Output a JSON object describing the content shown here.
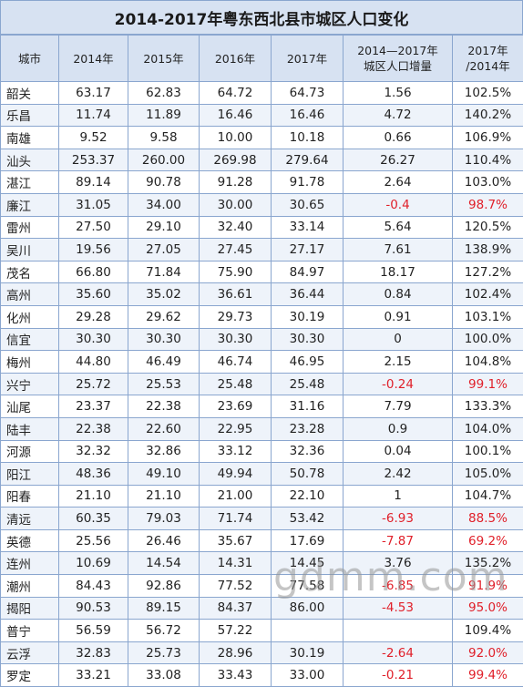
{
  "title": "2014-2017年粤东西北县市城区人口变化",
  "headers": [
    "城市",
    "2014年",
    "2015年",
    "2016年",
    "2017年",
    "2014—2017年\n城区人口增量",
    "2017年\n/2014年"
  ],
  "rows": [
    [
      "韶关",
      "63.17",
      "62.83",
      "64.72",
      "64.73",
      "1.56",
      "102.5%"
    ],
    [
      "乐昌",
      "11.74",
      "11.89",
      "16.46",
      "16.46",
      "4.72",
      "140.2%"
    ],
    [
      "南雄",
      "9.52",
      "9.58",
      "10.00",
      "10.18",
      "0.66",
      "106.9%"
    ],
    [
      "汕头",
      "253.37",
      "260.00",
      "269.98",
      "279.64",
      "26.27",
      "110.4%"
    ],
    [
      "湛江",
      "89.14",
      "90.78",
      "91.28",
      "91.78",
      "2.64",
      "103.0%"
    ],
    [
      "廉江",
      "31.05",
      "34.00",
      "30.00",
      "30.65",
      "-0.4",
      "98.7%"
    ],
    [
      "雷州",
      "27.50",
      "29.10",
      "32.40",
      "33.14",
      "5.64",
      "120.5%"
    ],
    [
      "吴川",
      "19.56",
      "27.05",
      "27.45",
      "27.17",
      "7.61",
      "138.9%"
    ],
    [
      "茂名",
      "66.80",
      "71.84",
      "75.90",
      "84.97",
      "18.17",
      "127.2%"
    ],
    [
      "高州",
      "35.60",
      "35.02",
      "36.61",
      "36.44",
      "0.84",
      "102.4%"
    ],
    [
      "化州",
      "29.28",
      "29.62",
      "29.73",
      "30.19",
      "0.91",
      "103.1%"
    ],
    [
      "信宜",
      "30.30",
      "30.30",
      "30.30",
      "30.30",
      "0",
      "100.0%"
    ],
    [
      "梅州",
      "44.80",
      "46.49",
      "46.74",
      "46.95",
      "2.15",
      "104.8%"
    ],
    [
      "兴宁",
      "25.72",
      "25.53",
      "25.48",
      "25.48",
      "-0.24",
      "99.1%"
    ],
    [
      "汕尾",
      "23.37",
      "22.38",
      "23.69",
      "31.16",
      "7.79",
      "133.3%"
    ],
    [
      "陆丰",
      "22.38",
      "22.60",
      "22.95",
      "23.28",
      "0.9",
      "104.0%"
    ],
    [
      "河源",
      "32.32",
      "32.86",
      "33.12",
      "32.36",
      "0.04",
      "100.1%"
    ],
    [
      "阳江",
      "48.36",
      "49.10",
      "49.94",
      "50.78",
      "2.42",
      "105.0%"
    ],
    [
      "阳春",
      "21.10",
      "21.10",
      "21.00",
      "22.10",
      "1",
      "104.7%"
    ],
    [
      "清远",
      "60.35",
      "79.03",
      "71.74",
      "53.42",
      "-6.93",
      "88.5%"
    ],
    [
      "英德",
      "25.56",
      "26.46",
      "35.67",
      "17.69",
      "-7.87",
      "69.2%"
    ],
    [
      "连州",
      "10.69",
      "14.54",
      "14.31",
      "14.45",
      "3.76",
      "135.2%"
    ],
    [
      "潮州",
      "84.43",
      "92.86",
      "77.52",
      "77.58",
      "-6.85",
      "91.9%"
    ],
    [
      "揭阳",
      "90.53",
      "89.15",
      "84.37",
      "86.00",
      "-4.53",
      "95.0%"
    ],
    [
      "普宁",
      "56.59",
      "56.72",
      "57.22",
      "",
      "",
      "109.4%"
    ],
    [
      "云浮",
      "32.83",
      "25.73",
      "28.96",
      "30.19",
      "-2.64",
      "92.0%"
    ],
    [
      "罗定",
      "33.21",
      "33.08",
      "33.43",
      "33.00",
      "-0.21",
      "99.4%"
    ]
  ],
  "negative_color": "#e0202a",
  "watermark": "gdmm.com"
}
